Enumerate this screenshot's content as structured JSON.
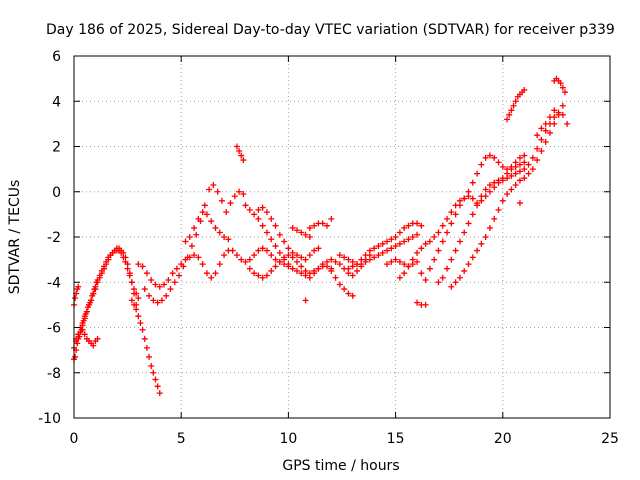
{
  "chart_data": {
    "type": "scatter",
    "title": "Day 186 of 2025, Sidereal Day-to-day VTEC variation (SDTVAR) for receiver p339",
    "xlabel": "GPS time / hours",
    "ylabel": "SDTVAR / TECUs",
    "xlim": [
      0,
      25
    ],
    "ylim": [
      -10,
      6
    ],
    "xticks": [
      "0",
      "5",
      "10",
      "15",
      "20",
      "25"
    ],
    "yticks": [
      "-10",
      "-8",
      "-6",
      "-4",
      "-2",
      "0",
      "2",
      "4",
      "6"
    ],
    "grid": true,
    "marker": "plus",
    "color": "#ff0000",
    "series": [
      {
        "x": [
          0.0,
          0.05,
          0.1,
          0.15,
          0.2,
          0.25,
          0.3,
          0.35,
          0.4,
          0.45,
          0.5,
          0.55,
          0.6,
          0.65,
          0.7,
          0.75,
          0.8,
          0.85,
          0.9,
          0.95,
          1.0,
          1.05,
          1.1,
          1.2,
          1.3,
          1.4,
          1.5,
          1.6,
          1.7,
          1.8,
          1.9,
          2.0,
          2.1,
          2.2,
          2.3,
          2.4,
          2.5,
          2.6,
          2.7,
          2.8,
          2.9,
          3.0
        ],
        "y": [
          -7.4,
          -7.3,
          -7.0,
          -6.7,
          -6.5,
          -6.4,
          -6.2,
          -6.1,
          -5.9,
          -5.7,
          -5.6,
          -5.4,
          -5.3,
          -5.1,
          -5.0,
          -4.9,
          -4.8,
          -4.6,
          -4.5,
          -4.3,
          -4.2,
          -4.0,
          -3.9,
          -3.7,
          -3.5,
          -3.3,
          -3.1,
          -2.9,
          -2.8,
          -2.7,
          -2.6,
          -2.6,
          -2.6,
          -2.7,
          -2.9,
          -3.1,
          -3.4,
          -3.7,
          -4.0,
          -4.3,
          -4.5,
          -4.7
        ]
      },
      {
        "x": [
          0.0,
          0.1,
          0.2,
          0.3,
          0.4,
          0.5,
          0.6,
          0.7,
          0.8,
          0.9,
          1.0,
          1.1,
          1.2,
          1.3,
          1.4,
          1.5,
          1.6,
          1.7,
          1.8,
          1.9,
          2.0,
          2.1,
          2.2,
          2.3,
          2.4,
          2.5,
          2.6,
          2.7,
          2.8,
          2.9
        ],
        "y": [
          -6.9,
          -6.6,
          -6.3,
          -6.0,
          -5.8,
          -5.5,
          -5.3,
          -5.0,
          -4.8,
          -4.5,
          -4.3,
          -4.0,
          -3.8,
          -3.6,
          -3.4,
          -3.2,
          -3.0,
          -2.8,
          -2.7,
          -2.6,
          -2.5,
          -2.5,
          -2.6,
          -2.7,
          -2.9,
          -3.2,
          -3.6,
          -4.0,
          -4.5,
          -5.0
        ]
      },
      {
        "x": [
          0.1,
          0.2,
          0.3,
          0.4,
          0.5,
          0.6,
          0.7,
          0.8,
          0.9,
          1.0,
          1.1
        ],
        "y": [
          -6.5,
          -6.3,
          -6.2,
          -6.1,
          -6.3,
          -6.5,
          -6.6,
          -6.7,
          -6.8,
          -6.6,
          -6.5
        ]
      },
      {
        "x": [
          0.0,
          0.05,
          0.1,
          0.15,
          0.2
        ],
        "y": [
          -5.0,
          -4.7,
          -4.5,
          -4.3,
          -4.2
        ]
      },
      {
        "x": [
          2.7,
          2.8,
          2.9,
          3.0,
          3.1,
          3.2,
          3.3,
          3.4,
          3.5,
          3.6,
          3.7,
          3.8,
          3.9,
          4.0
        ],
        "y": [
          -4.8,
          -5.0,
          -5.2,
          -5.5,
          -5.8,
          -6.1,
          -6.5,
          -6.9,
          -7.3,
          -7.7,
          -8.0,
          -8.3,
          -8.6,
          -8.9
        ]
      },
      {
        "x": [
          3.0,
          3.2,
          3.4,
          3.6,
          3.8,
          4.0,
          4.2,
          4.4,
          4.6,
          4.8,
          5.0,
          5.2,
          5.4,
          5.6,
          5.8,
          6.0,
          6.2,
          6.4,
          6.6,
          6.8,
          7.0,
          7.2,
          7.4,
          7.6,
          7.8,
          8.0,
          8.2,
          8.4,
          8.6,
          8.8,
          9.0,
          9.2,
          9.4,
          9.6,
          9.8,
          10.0
        ],
        "y": [
          -3.2,
          -3.3,
          -3.6,
          -3.9,
          -4.1,
          -4.2,
          -4.1,
          -3.9,
          -3.6,
          -3.4,
          -3.2,
          -3.0,
          -2.9,
          -2.8,
          -2.9,
          -3.2,
          -3.6,
          -3.8,
          -3.6,
          -3.2,
          -2.8,
          -2.6,
          -2.6,
          -2.8,
          -3.0,
          -3.1,
          -3.0,
          -2.8,
          -2.6,
          -2.5,
          -2.6,
          -2.8,
          -3.0,
          -3.1,
          -3.2,
          -3.3
        ]
      },
      {
        "x": [
          3.3,
          3.5,
          3.7,
          3.9,
          4.1,
          4.3,
          4.5,
          4.7,
          4.9,
          5.1,
          5.3,
          5.5,
          5.7,
          5.9,
          6.1,
          6.3,
          6.5,
          6.7,
          6.9,
          7.1,
          7.3,
          7.5,
          7.7,
          7.9
        ],
        "y": [
          -4.3,
          -4.6,
          -4.8,
          -4.9,
          -4.8,
          -4.6,
          -4.3,
          -4.0,
          -3.7,
          -3.3,
          -2.9,
          -2.4,
          -1.9,
          -1.3,
          -0.6,
          0.1,
          0.3,
          0.0,
          -0.4,
          -0.9,
          -0.5,
          -0.2,
          0.0,
          -0.1
        ]
      },
      {
        "x": [
          5.2,
          5.4,
          5.6,
          5.8,
          6.0,
          6.2,
          6.4,
          6.6,
          6.8,
          7.0,
          7.2
        ],
        "y": [
          -2.2,
          -2.0,
          -1.6,
          -1.2,
          -0.9,
          -1.0,
          -1.3,
          -1.6,
          -1.8,
          -2.0,
          -2.1
        ]
      },
      {
        "x": [
          7.6,
          7.7,
          7.8,
          7.9
        ],
        "y": [
          2.0,
          1.8,
          1.6,
          1.4
        ]
      },
      {
        "x": [
          8.0,
          8.2,
          8.4,
          8.6,
          8.8,
          9.0,
          9.2,
          9.4,
          9.6,
          9.8,
          10.0,
          10.2,
          10.4,
          10.6,
          10.8,
          11.0,
          11.2,
          11.4,
          11.6,
          11.8,
          12.0,
          12.2,
          12.4,
          12.6,
          12.8,
          13.0,
          13.2,
          13.4,
          13.6,
          13.8
        ],
        "y": [
          -0.6,
          -0.8,
          -1.0,
          -1.2,
          -1.5,
          -1.8,
          -2.1,
          -2.4,
          -2.7,
          -3.0,
          -3.2,
          -3.4,
          -3.5,
          -3.6,
          -3.7,
          -3.8,
          -3.6,
          -3.4,
          -3.2,
          -3.1,
          -3.0,
          -3.1,
          -3.2,
          -3.4,
          -3.6,
          -3.7,
          -3.5,
          -3.3,
          -3.0,
          -2.8
        ]
      },
      {
        "x": [
          8.2,
          8.4,
          8.6,
          8.8,
          9.0,
          9.2,
          9.4,
          9.6,
          9.8,
          10.0,
          10.2,
          10.4,
          10.6,
          10.8,
          11.0,
          11.2,
          11.4,
          11.6,
          11.8,
          12.0
        ],
        "y": [
          -3.4,
          -3.6,
          -3.7,
          -3.8,
          -3.7,
          -3.5,
          -3.3,
          -3.1,
          -2.9,
          -2.8,
          -2.9,
          -3.1,
          -3.3,
          -3.5,
          -3.6,
          -3.5,
          -3.4,
          -3.3,
          -3.3,
          -3.4
        ]
      },
      {
        "x": [
          8.6,
          8.8,
          9.0,
          9.2,
          9.4,
          9.6,
          9.8,
          10.0,
          10.2,
          10.4,
          10.6,
          10.8,
          11.0,
          11.2,
          11.4
        ],
        "y": [
          -0.8,
          -0.7,
          -0.9,
          -1.2,
          -1.5,
          -1.9,
          -2.2,
          -2.5,
          -2.7,
          -2.8,
          -2.9,
          -3.0,
          -2.8,
          -2.6,
          -2.5
        ]
      },
      {
        "x": [
          12.4,
          12.6,
          12.8,
          13.0,
          13.2,
          13.4,
          13.6,
          13.8,
          14.0,
          14.2,
          14.4,
          14.6,
          14.8,
          15.0,
          15.2,
          15.4,
          15.6,
          15.8,
          16.0
        ],
        "y": [
          -2.8,
          -2.9,
          -3.0,
          -3.1,
          -3.2,
          -3.2,
          -3.1,
          -3.0,
          -2.9,
          -2.8,
          -2.7,
          -2.6,
          -2.5,
          -2.4,
          -2.3,
          -2.2,
          -2.1,
          -2.0,
          -1.9
        ]
      },
      {
        "x": [
          12.8,
          13.0,
          13.2,
          13.4,
          13.6,
          13.8,
          14.0,
          14.2,
          14.4,
          14.6,
          14.8,
          15.0,
          15.2,
          15.4,
          15.6,
          15.8,
          16.0,
          16.2
        ],
        "y": [
          -3.4,
          -3.3,
          -3.2,
          -3.0,
          -2.8,
          -2.6,
          -2.5,
          -2.4,
          -2.3,
          -2.2,
          -2.1,
          -2.0,
          -1.8,
          -1.6,
          -1.5,
          -1.4,
          -1.4,
          -1.5
        ]
      },
      {
        "x": [
          14.6,
          14.8,
          15.0,
          15.2,
          15.4,
          15.6,
          15.8,
          16.0
        ],
        "y": [
          -3.2,
          -3.1,
          -3.0,
          -3.1,
          -3.2,
          -3.3,
          -3.2,
          -3.1
        ]
      },
      {
        "x": [
          15.2,
          15.4,
          15.6,
          15.8,
          16.0,
          16.2,
          16.4,
          16.6
        ],
        "y": [
          -3.8,
          -3.6,
          -3.3,
          -3.0,
          -2.7,
          -2.5,
          -2.3,
          -2.2
        ]
      },
      {
        "x": [
          12.0,
          12.2,
          12.4,
          12.6,
          12.8,
          13.0
        ],
        "y": [
          -3.5,
          -3.8,
          -4.1,
          -4.3,
          -4.5,
          -4.6
        ]
      },
      {
        "x": [
          11.0,
          11.2,
          11.4,
          11.6,
          11.8
        ],
        "y": [
          -1.6,
          -1.5,
          -1.4,
          -1.4,
          -1.5
        ]
      },
      {
        "x": [
          10.2,
          10.4,
          10.6,
          10.8,
          11.0
        ],
        "y": [
          -1.6,
          -1.7,
          -1.8,
          -1.9,
          -2.0
        ]
      },
      {
        "x": [
          16.0,
          16.2,
          16.4
        ],
        "y": [
          -4.9,
          -5.0,
          -5.0
        ]
      },
      {
        "x": [
          10.8
        ],
        "y": [
          -4.8
        ]
      },
      {
        "x": [
          12.0
        ],
        "y": [
          -1.2
        ]
      },
      {
        "x": [
          16.6,
          16.8,
          17.0,
          17.2,
          17.4,
          17.6,
          17.8,
          18.0,
          18.2,
          18.4,
          18.6,
          18.8,
          19.0,
          19.2,
          19.4,
          19.6,
          19.8,
          20.0,
          20.2,
          20.4,
          20.6,
          20.8,
          21.0
        ],
        "y": [
          -3.4,
          -3.0,
          -2.6,
          -2.2,
          -1.8,
          -1.4,
          -1.0,
          -0.6,
          -0.3,
          0.0,
          0.4,
          0.8,
          1.2,
          1.5,
          1.6,
          1.5,
          1.3,
          1.1,
          1.0,
          1.1,
          1.3,
          1.5,
          1.6
        ]
      },
      {
        "x": [
          17.0,
          17.2,
          17.4,
          17.6,
          17.8,
          18.0,
          18.2,
          18.4,
          18.6,
          18.8,
          19.0,
          19.2,
          19.4,
          19.6,
          19.8,
          20.0,
          20.2,
          20.4,
          20.6,
          20.8,
          21.0,
          21.2,
          21.4,
          21.6,
          21.8,
          22.0,
          22.2,
          22.4,
          22.6,
          22.8,
          23.0
        ],
        "y": [
          -4.0,
          -3.8,
          -3.4,
          -3.0,
          -2.6,
          -2.2,
          -1.8,
          -1.4,
          -1.0,
          -0.6,
          -0.2,
          0.1,
          0.3,
          0.4,
          0.5,
          0.5,
          0.6,
          0.7,
          0.8,
          0.9,
          1.0,
          1.2,
          1.5,
          1.9,
          2.3,
          2.7,
          3.0,
          3.3,
          3.5,
          3.4,
          3.0
        ]
      },
      {
        "x": [
          16.8,
          17.0,
          17.2,
          17.4,
          17.6,
          17.8,
          18.0,
          18.2,
          18.4,
          18.6,
          18.8,
          19.0,
          19.2,
          19.4,
          19.6,
          19.8,
          20.0,
          20.2,
          20.4,
          20.6,
          20.8,
          21.0
        ],
        "y": [
          -2.0,
          -1.8,
          -1.5,
          -1.2,
          -0.9,
          -0.6,
          -0.4,
          -0.3,
          -0.2,
          -0.3,
          -0.5,
          -0.4,
          -0.2,
          0.0,
          0.2,
          0.4,
          0.6,
          0.8,
          1.0,
          1.1,
          1.2,
          1.3
        ]
      },
      {
        "x": [
          17.6,
          17.8,
          18.0,
          18.2,
          18.4,
          18.6,
          18.8,
          19.0,
          19.2,
          19.4,
          19.6,
          19.8,
          20.0,
          20.2,
          20.4,
          20.6,
          20.8,
          21.0,
          21.2,
          21.4,
          21.6,
          21.8,
          22.0,
          22.2,
          22.4,
          22.6,
          22.8
        ],
        "y": [
          -4.2,
          -4.0,
          -3.8,
          -3.5,
          -3.2,
          -2.9,
          -2.6,
          -2.3,
          -2.0,
          -1.6,
          -1.2,
          -0.8,
          -0.4,
          -0.1,
          0.1,
          0.3,
          0.5,
          0.6,
          0.8,
          1.0,
          1.4,
          1.8,
          2.2,
          2.6,
          3.0,
          3.4,
          3.8
        ]
      },
      {
        "x": [
          20.2,
          20.3,
          20.4,
          20.5,
          20.6,
          20.7,
          20.8,
          20.9,
          21.0
        ],
        "y": [
          3.2,
          3.4,
          3.6,
          3.8,
          4.0,
          4.2,
          4.3,
          4.4,
          4.5
        ]
      },
      {
        "x": [
          22.4,
          22.5,
          22.6,
          22.7,
          22.8,
          22.9
        ],
        "y": [
          4.9,
          5.0,
          4.9,
          4.8,
          4.6,
          4.4
        ]
      },
      {
        "x": [
          21.6,
          21.8,
          22.0,
          22.2,
          22.4
        ],
        "y": [
          2.5,
          2.8,
          3.0,
          3.3,
          3.6
        ]
      },
      {
        "x": [
          20.8
        ],
        "y": [
          -0.5
        ]
      },
      {
        "x": [
          16.2,
          16.4
        ],
        "y": [
          -3.6,
          -3.9
        ]
      }
    ]
  }
}
